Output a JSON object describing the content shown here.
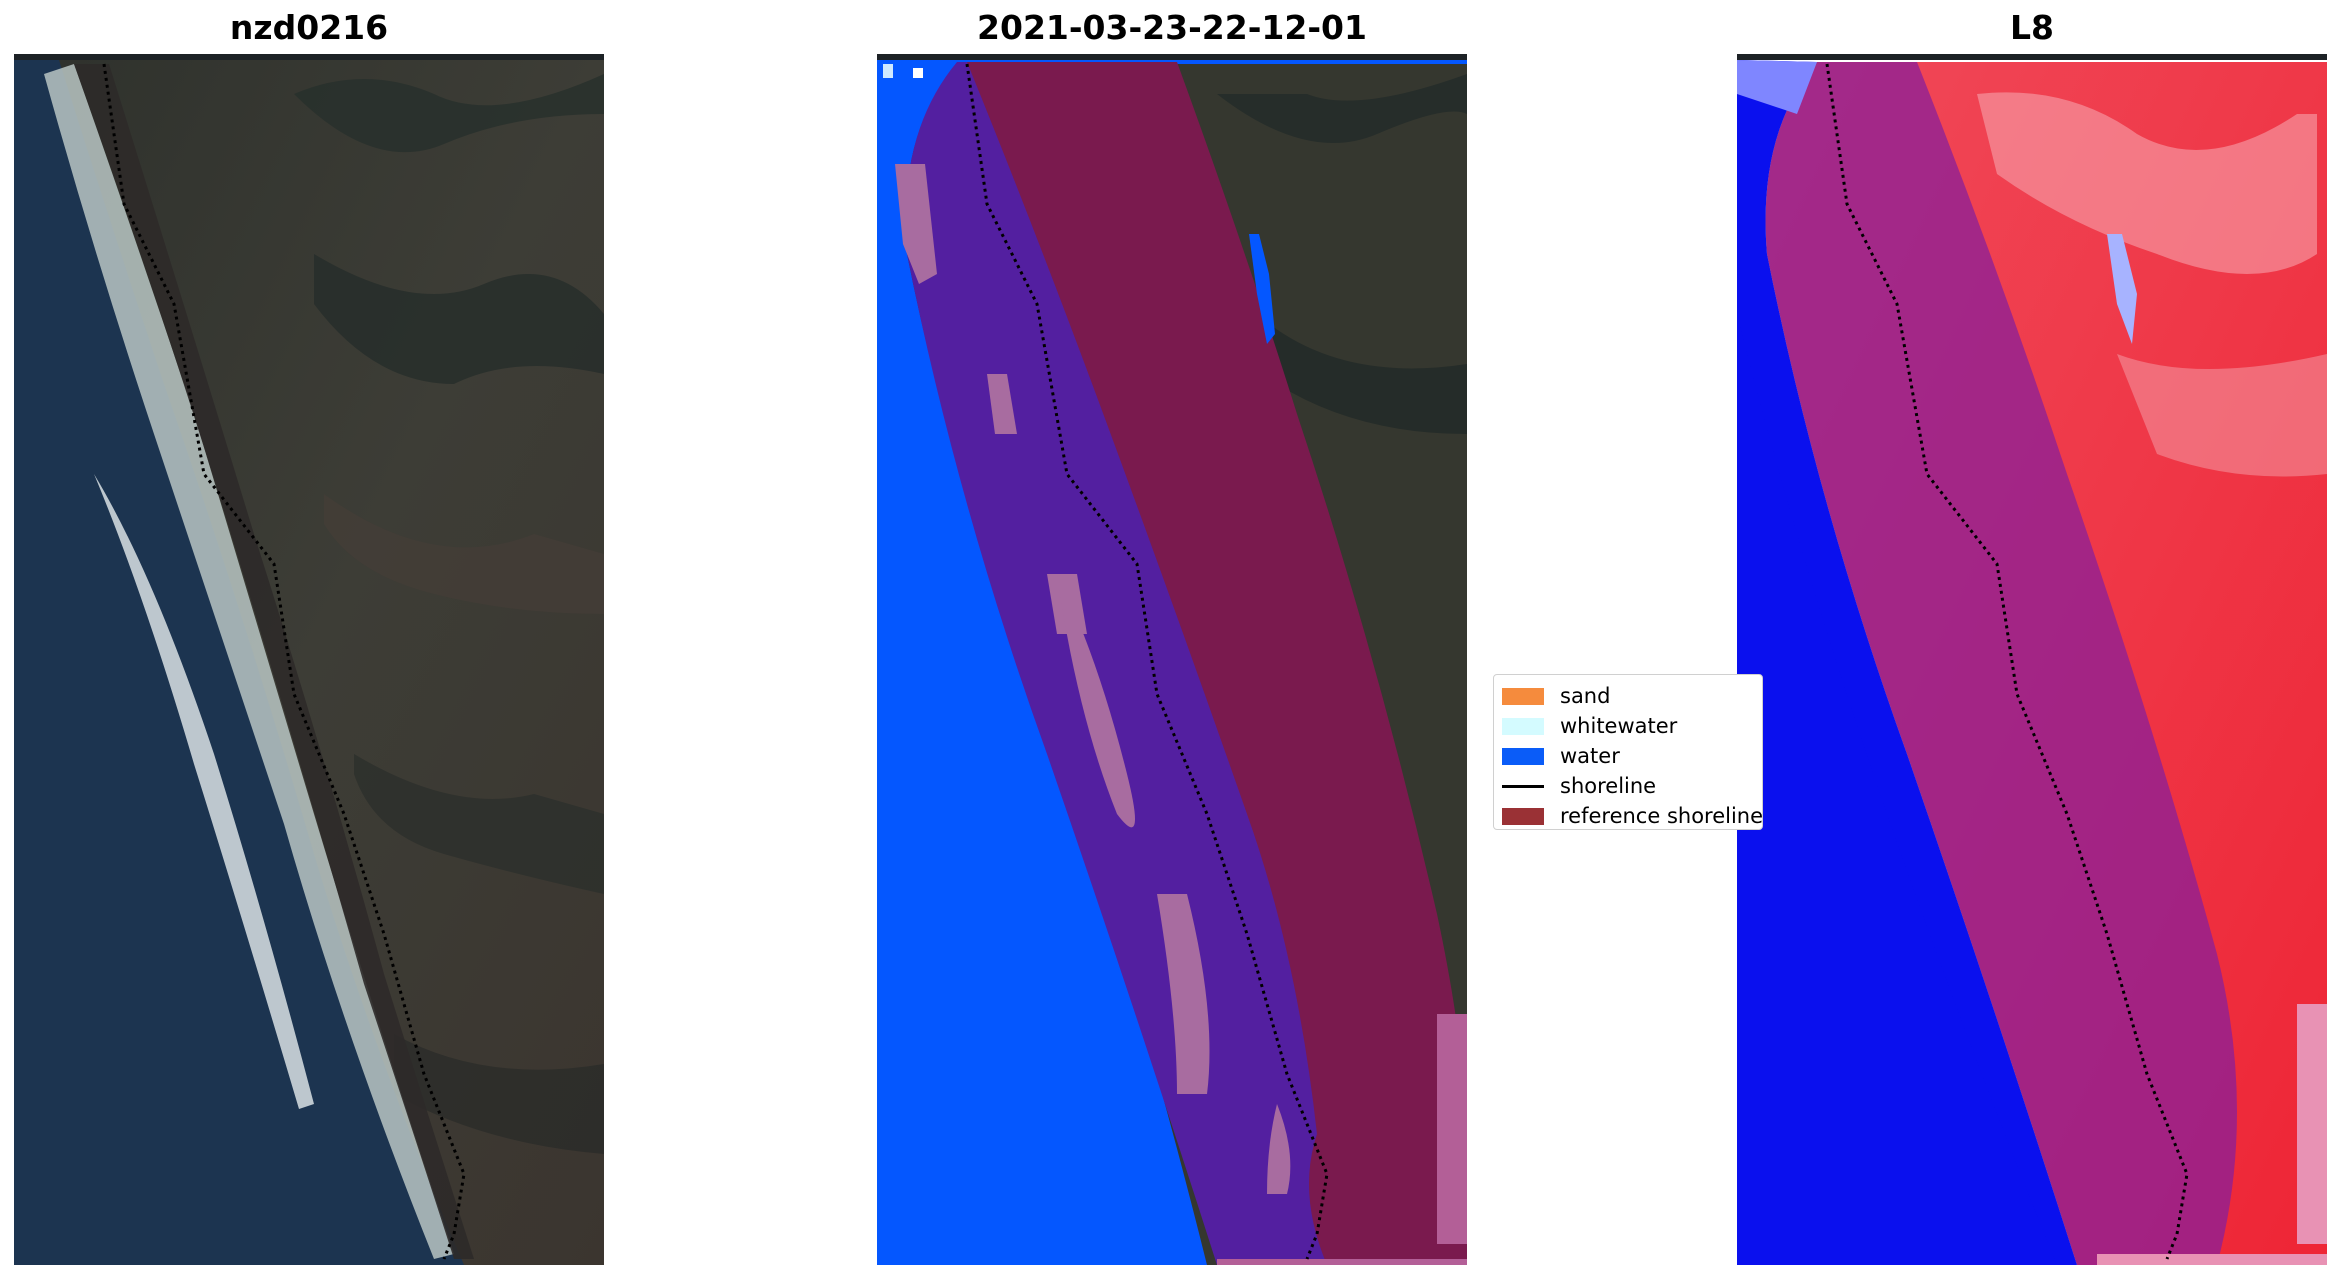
{
  "panels": [
    {
      "title": "nzd0216"
    },
    {
      "title": "2021-03-23-22-12-01"
    },
    {
      "title": "L8"
    }
  ],
  "legend": {
    "items": [
      {
        "label": "sand",
        "color": "#f58b3d"
      },
      {
        "label": "whitewater",
        "color": "#d4fbff"
      },
      {
        "label": "water",
        "color": "#0a5cf8"
      },
      {
        "label": "shoreline",
        "color": "#000000"
      },
      {
        "label": "reference shoreline",
        "color": "#9a3135"
      }
    ]
  },
  "colors": {
    "sea": "#1b3350",
    "land": "#3a3c36",
    "classified_water": "#0457ff",
    "classified_beach": "#531fa0",
    "classified_land_buffer": "#7a1a4e",
    "classified_sand_patch": "#a86ca0",
    "index_water": "#0a10ee",
    "index_land": "#ee2535"
  }
}
